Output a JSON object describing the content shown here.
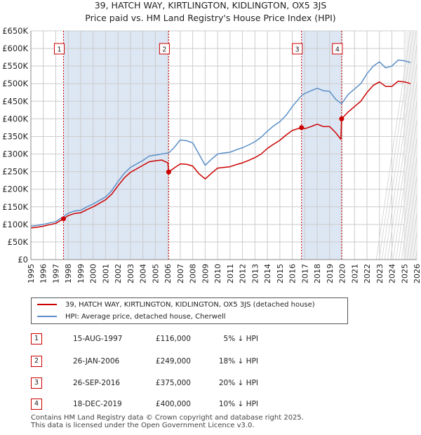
{
  "title_line1": "39, HATCH WAY, KIRTLINGTON, KIDLINGTON, OX5 3JS",
  "title_line2": "Price paid vs. HM Land Registry's House Price Index (HPI)",
  "colors": {
    "price_paid": "#cc0000",
    "hpi": "#5b8fc7",
    "shade": "#dde6f3",
    "grid": "#cccccc"
  },
  "legend": {
    "price_paid_label": "39, HATCH WAY, KIRTLINGTON, KIDLINGTON, OX5 3JS (detached house)",
    "hpi_label": "HPI: Average price, detached house, Cherwell"
  },
  "sales": [
    {
      "num": "1",
      "date": "15-AUG-1997",
      "price": "£116,000",
      "hpi": "5% ↓ HPI"
    },
    {
      "num": "2",
      "date": "26-JAN-2006",
      "price": "£249,000",
      "hpi": "18% ↓ HPI"
    },
    {
      "num": "3",
      "date": "26-SEP-2016",
      "price": "£375,000",
      "hpi": "20% ↓ HPI"
    },
    {
      "num": "4",
      "date": "18-DEC-2019",
      "price": "£400,000",
      "hpi": "10% ↓ HPI"
    }
  ],
  "footer_line1": "Contains HM Land Registry data © Crown copyright and database right 2025.",
  "footer_line2": "This data is licensed under the Open Government Licence v3.0.",
  "chart_data": {
    "type": "line",
    "xlim": [
      1995,
      2026
    ],
    "ylim": [
      0,
      650000
    ],
    "y_ticks": [
      0,
      50000,
      100000,
      150000,
      200000,
      250000,
      300000,
      350000,
      400000,
      450000,
      500000,
      550000,
      600000,
      650000
    ],
    "y_tick_labels": [
      "£0",
      "£50K",
      "£100K",
      "£150K",
      "£200K",
      "£250K",
      "£300K",
      "£350K",
      "£400K",
      "£450K",
      "£500K",
      "£550K",
      "£600K",
      "£650K"
    ],
    "x_ticks": [
      1995,
      1996,
      1997,
      1998,
      1999,
      2000,
      2001,
      2002,
      2003,
      2004,
      2005,
      2006,
      2007,
      2008,
      2009,
      2010,
      2011,
      2012,
      2013,
      2014,
      2015,
      2016,
      2017,
      2018,
      2019,
      2020,
      2021,
      2022,
      2023,
      2024,
      2025,
      2026
    ],
    "x_tick_labels": [
      "1995",
      "1996",
      "1997",
      "1998",
      "1999",
      "2000",
      "2001",
      "2002",
      "2003",
      "2004",
      "2005",
      "2006",
      "2007",
      "2008",
      "2009",
      "2010",
      "2011",
      "2012",
      "2013",
      "2014",
      "2015",
      "2016",
      "2017",
      "2018",
      "2019",
      "2020",
      "2021",
      "2022",
      "2023",
      "2024",
      "2025",
      "2026"
    ],
    "shaded_periods": [
      [
        1997.62,
        2006.07
      ],
      [
        2016.74,
        2019.96
      ]
    ],
    "sale_markers": [
      {
        "label": "1",
        "x": 1997.62,
        "y": 116000
      },
      {
        "label": "2",
        "x": 2006.07,
        "y": 249000
      },
      {
        "label": "3",
        "x": 2016.74,
        "y": 375000
      },
      {
        "label": "4",
        "x": 2019.96,
        "y": 400000
      }
    ],
    "series": [
      {
        "name": "HPI: Average price, detached house, Cherwell",
        "x": [
          1995.0,
          1995.5,
          1996.0,
          1996.5,
          1997.0,
          1997.62,
          1998.0,
          1998.5,
          1999.0,
          1999.5,
          2000.0,
          2000.5,
          2001.0,
          2001.5,
          2002.0,
          2002.5,
          2003.0,
          2003.5,
          2004.0,
          2004.5,
          2005.0,
          2005.5,
          2006.07,
          2006.5,
          2007.0,
          2007.5,
          2008.0,
          2008.5,
          2009.0,
          2009.5,
          2010.0,
          2010.5,
          2011.0,
          2011.5,
          2012.0,
          2012.5,
          2013.0,
          2013.5,
          2014.0,
          2014.5,
          2015.0,
          2015.5,
          2016.0,
          2016.74,
          2017.0,
          2017.5,
          2018.0,
          2018.5,
          2019.0,
          2019.5,
          2019.96,
          2020.5,
          2021.0,
          2021.5,
          2022.0,
          2022.5,
          2023.0,
          2023.5,
          2024.0,
          2024.5,
          2025.0,
          2025.5
        ],
        "values": [
          95000,
          97000,
          100000,
          104000,
          108000,
          122000,
          132000,
          138000,
          140000,
          150000,
          158000,
          168000,
          178000,
          196000,
          222000,
          245000,
          262000,
          272000,
          282000,
          294000,
          297000,
          300000,
          303000,
          318000,
          340000,
          338000,
          332000,
          300000,
          268000,
          285000,
          300000,
          303000,
          305000,
          312000,
          318000,
          326000,
          335000,
          348000,
          365000,
          380000,
          392000,
          410000,
          435000,
          466000,
          472000,
          480000,
          487000,
          480000,
          478000,
          455000,
          443000,
          470000,
          485000,
          500000,
          528000,
          550000,
          562000,
          545000,
          550000,
          567000,
          565000,
          560000
        ]
      },
      {
        "name": "39, HATCH WAY, KIRTLINGTON, KIDLINGTON, OX5 3JS (detached house)",
        "x": [
          1995.0,
          1995.5,
          1996.0,
          1996.5,
          1997.0,
          1997.62,
          1998.0,
          1998.5,
          1999.0,
          1999.5,
          2000.0,
          2000.5,
          2001.0,
          2001.5,
          2002.0,
          2002.5,
          2003.0,
          2003.5,
          2004.0,
          2004.5,
          2005.0,
          2005.5,
          2006.0,
          2006.07,
          2006.5,
          2007.0,
          2007.5,
          2008.0,
          2008.5,
          2009.0,
          2009.5,
          2010.0,
          2010.5,
          2011.0,
          2011.5,
          2012.0,
          2012.5,
          2013.0,
          2013.5,
          2014.0,
          2014.5,
          2015.0,
          2015.5,
          2016.0,
          2016.74,
          2017.0,
          2017.5,
          2018.0,
          2018.5,
          2019.0,
          2019.5,
          2019.9,
          2019.96,
          2020.5,
          2021.0,
          2021.5,
          2022.0,
          2022.5,
          2023.0,
          2023.5,
          2024.0,
          2024.5,
          2025.0,
          2025.5
        ],
        "values": [
          90000,
          92000,
          95000,
          99000,
          103000,
          116000,
          125000,
          131000,
          133000,
          142000,
          150000,
          160000,
          170000,
          186000,
          210000,
          232000,
          248000,
          258000,
          268000,
          278000,
          281000,
          283000,
          275000,
          249000,
          260000,
          272000,
          271000,
          266000,
          244000,
          229000,
          245000,
          260000,
          262000,
          264000,
          270000,
          275000,
          282000,
          290000,
          300000,
          316000,
          328000,
          339000,
          354000,
          367000,
          375000,
          372000,
          378000,
          385000,
          378000,
          378000,
          360000,
          342000,
          400000,
          420000,
          435000,
          450000,
          475000,
          495000,
          505000,
          492000,
          492000,
          507000,
          505000,
          500000
        ]
      }
    ]
  }
}
